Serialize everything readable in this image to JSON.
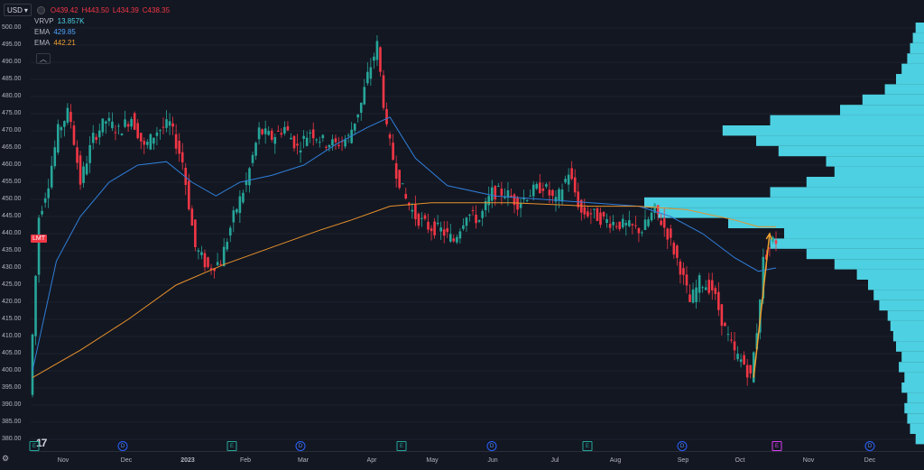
{
  "toolbar": {
    "currency": "USD",
    "ohlc": {
      "o": "O439.42",
      "h": "H443.50",
      "l": "L434.39",
      "c": "C438.35"
    }
  },
  "legend": {
    "vrvp": {
      "label": "VRVP",
      "value": "13.857K"
    },
    "ema1": {
      "label": "EMA",
      "value": "429.85"
    },
    "ema2": {
      "label": "EMA",
      "value": "442.21"
    }
  },
  "symbol_badge": "LMT",
  "colors": {
    "up": "#26a69a",
    "down": "#f23645",
    "ema_fast": "#2f7ed8",
    "ema_slow": "#e8922b",
    "vrvp": "#4dd0e1",
    "arrow": "#f0a030"
  },
  "icons": {
    "currency_caret": "chevron-down-icon",
    "status": "status-dot-icon",
    "collapse": "chevron-up-icon",
    "settings": "gear-icon",
    "logo": "tradingview-logo"
  },
  "chart_data": {
    "type": "candlestick",
    "y_ticks": [
      "500.00",
      "495.00",
      "490.00",
      "485.00",
      "480.00",
      "475.00",
      "470.00",
      "465.00",
      "460.00",
      "455.00",
      "450.00",
      "445.00",
      "440.00",
      "435.00",
      "430.00",
      "425.00",
      "420.00",
      "415.00",
      "410.00",
      "405.00",
      "400.00",
      "395.00",
      "390.00",
      "385.00",
      "380.00"
    ],
    "ylim": [
      377,
      502
    ],
    "x_ticks": [
      "Nov",
      "Dec",
      "2023",
      "Feb",
      "Mar",
      "Apr",
      "May",
      "Jun",
      "Jul",
      "Aug",
      "Sep",
      "Oct",
      "Nov",
      "Dec"
    ],
    "price_path": [
      [
        0,
        393
      ],
      [
        6,
        445
      ],
      [
        12,
        455
      ],
      [
        18,
        470
      ],
      [
        25,
        476
      ],
      [
        32,
        455
      ],
      [
        40,
        468
      ],
      [
        48,
        473
      ],
      [
        56,
        470
      ],
      [
        64,
        474
      ],
      [
        72,
        465
      ],
      [
        80,
        470
      ],
      [
        88,
        472
      ],
      [
        96,
        461
      ],
      [
        104,
        436
      ],
      [
        112,
        430
      ],
      [
        120,
        432
      ],
      [
        128,
        445
      ],
      [
        136,
        455
      ],
      [
        144,
        470
      ],
      [
        152,
        468
      ],
      [
        160,
        471
      ],
      [
        168,
        465
      ],
      [
        176,
        470
      ],
      [
        184,
        467
      ],
      [
        192,
        466
      ],
      [
        200,
        468
      ],
      [
        208,
        478
      ],
      [
        212,
        486
      ],
      [
        218,
        495
      ],
      [
        224,
        470
      ],
      [
        230,
        458
      ],
      [
        236,
        450
      ],
      [
        242,
        445
      ],
      [
        250,
        442
      ],
      [
        258,
        441
      ],
      [
        266,
        438
      ],
      [
        274,
        446
      ],
      [
        282,
        444
      ],
      [
        290,
        452
      ],
      [
        298,
        452
      ],
      [
        306,
        449
      ],
      [
        314,
        452
      ],
      [
        322,
        454
      ],
      [
        330,
        449
      ],
      [
        338,
        458
      ],
      [
        346,
        446
      ],
      [
        352,
        446
      ],
      [
        360,
        444
      ],
      [
        368,
        443
      ],
      [
        376,
        442
      ],
      [
        384,
        441
      ],
      [
        392,
        447
      ],
      [
        400,
        440
      ],
      [
        408,
        430
      ],
      [
        414,
        420
      ],
      [
        420,
        426
      ],
      [
        428,
        424
      ],
      [
        436,
        412
      ],
      [
        442,
        405
      ],
      [
        448,
        402
      ],
      [
        452,
        398
      ],
      [
        456,
        412
      ],
      [
        460,
        432
      ],
      [
        466,
        438
      ]
    ],
    "ema_fast": [
      [
        0,
        400
      ],
      [
        15,
        432
      ],
      [
        30,
        445
      ],
      [
        48,
        455
      ],
      [
        66,
        460
      ],
      [
        84,
        461
      ],
      [
        100,
        455
      ],
      [
        115,
        451
      ],
      [
        130,
        455
      ],
      [
        150,
        457
      ],
      [
        170,
        460
      ],
      [
        190,
        466
      ],
      [
        210,
        471
      ],
      [
        224,
        474
      ],
      [
        240,
        462
      ],
      [
        260,
        454
      ],
      [
        290,
        451
      ],
      [
        320,
        450
      ],
      [
        350,
        449
      ],
      [
        380,
        448
      ],
      [
        400,
        445
      ],
      [
        420,
        440
      ],
      [
        440,
        433
      ],
      [
        455,
        429
      ],
      [
        466,
        430
      ]
    ],
    "ema_slow": [
      [
        0,
        398
      ],
      [
        30,
        406
      ],
      [
        60,
        415
      ],
      [
        90,
        425
      ],
      [
        120,
        431
      ],
      [
        150,
        436
      ],
      [
        180,
        441
      ],
      [
        200,
        444
      ],
      [
        224,
        448
      ],
      [
        250,
        449
      ],
      [
        300,
        449
      ],
      [
        350,
        448
      ],
      [
        380,
        448
      ],
      [
        410,
        447
      ],
      [
        440,
        444
      ],
      [
        455,
        442
      ],
      [
        466,
        442
      ]
    ],
    "volume_profile": [
      [
        380,
        3
      ],
      [
        383,
        5
      ],
      [
        386,
        6
      ],
      [
        389,
        7
      ],
      [
        392,
        6
      ],
      [
        395,
        8
      ],
      [
        398,
        7
      ],
      [
        401,
        9
      ],
      [
        404,
        8
      ],
      [
        407,
        10
      ],
      [
        410,
        11
      ],
      [
        413,
        12
      ],
      [
        416,
        13
      ],
      [
        419,
        16
      ],
      [
        422,
        18
      ],
      [
        425,
        20
      ],
      [
        428,
        24
      ],
      [
        431,
        32
      ],
      [
        434,
        42
      ],
      [
        437,
        55
      ],
      [
        440,
        50
      ],
      [
        443,
        70
      ],
      [
        446,
        95
      ],
      [
        449,
        100
      ],
      [
        452,
        55
      ],
      [
        455,
        42
      ],
      [
        458,
        32
      ],
      [
        461,
        35
      ],
      [
        464,
        52
      ],
      [
        467,
        60
      ],
      [
        470,
        72
      ],
      [
        473,
        55
      ],
      [
        476,
        30
      ],
      [
        479,
        22
      ],
      [
        482,
        14
      ],
      [
        485,
        10
      ],
      [
        488,
        8
      ],
      [
        491,
        6
      ],
      [
        494,
        5
      ],
      [
        497,
        4
      ],
      [
        500,
        3
      ]
    ],
    "arrow": {
      "from": [
        452,
        398
      ],
      "to": [
        462,
        440
      ]
    }
  },
  "x_axis": {
    "labels": [
      "Nov",
      "Dec",
      "2023",
      "Feb",
      "Mar",
      "Apr",
      "May",
      "Jun",
      "Jul",
      "Aug",
      "Sep",
      "Oct",
      "Nov",
      "Dec"
    ]
  },
  "events": [
    "D",
    "D",
    "E",
    "D",
    "E",
    "D",
    "E",
    "D",
    "E",
    "D"
  ]
}
